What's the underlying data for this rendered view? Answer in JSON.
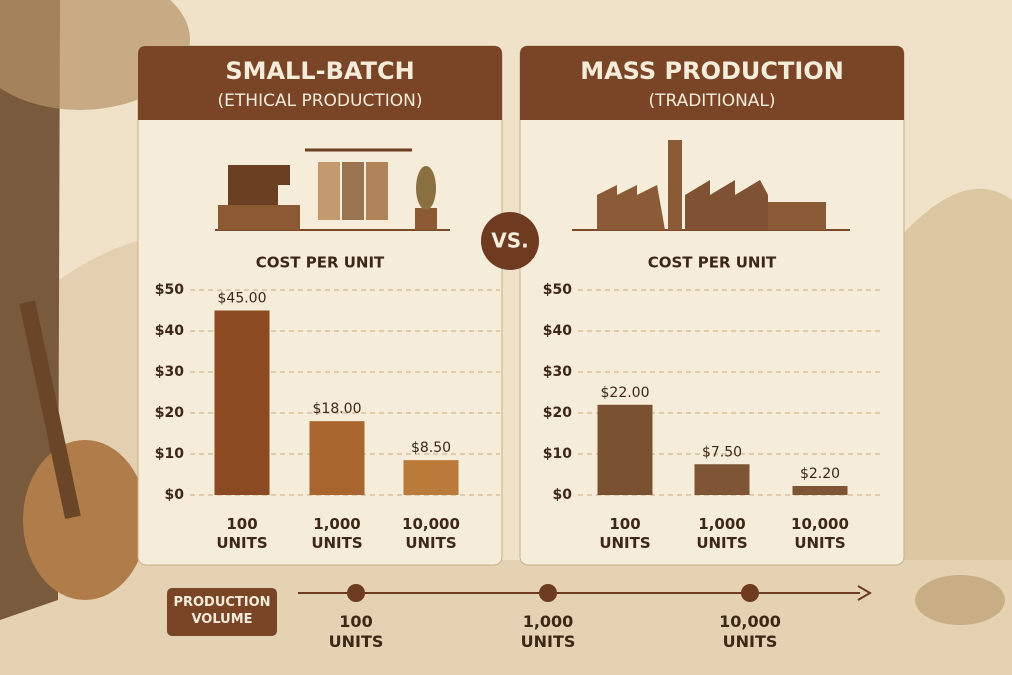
{
  "chart_data": [
    {
      "type": "bar",
      "title": "SMALL-BATCH",
      "subtitle": "(ETHICAL PRODUCTION)",
      "y_label": "COST PER UNIT",
      "categories": [
        "100 UNITS",
        "1,000 UNITS",
        "10,000 UNITS"
      ],
      "values": [
        45,
        18,
        8.5
      ],
      "value_labels": [
        "$45.00",
        "$18.00",
        "$8.50"
      ],
      "colors": [
        "#8b4a22",
        "#a8662e",
        "#b97a3a"
      ],
      "ylim": [
        0,
        50
      ],
      "yticks": [
        {
          "value": 0,
          "label": "$0"
        },
        {
          "value": 10,
          "label": "$10"
        },
        {
          "value": 20,
          "label": "$20"
        },
        {
          "value": 30,
          "label": "$30"
        },
        {
          "value": 40,
          "label": "$40"
        },
        {
          "value": 50,
          "label": "$50"
        }
      ],
      "grid": true
    },
    {
      "type": "bar",
      "title": "MASS PRODUCTION",
      "subtitle": "(TRADITIONAL)",
      "y_label": "COST PER UNIT",
      "categories": [
        "100 UNITS",
        "1,000 UNITS",
        "10,000 UNITS"
      ],
      "values": [
        22,
        7.5,
        2.2
      ],
      "value_labels": [
        "$22.00",
        "$7.50",
        "$2.20"
      ],
      "colors": [
        "#7a5232",
        "#7e5535",
        "#7e5535"
      ],
      "ylim": [
        0,
        50
      ],
      "yticks": [
        {
          "value": 0,
          "label": "$0"
        },
        {
          "value": 10,
          "label": "$10"
        },
        {
          "value": 20,
          "label": "$20"
        },
        {
          "value": 30,
          "label": "$30"
        },
        {
          "value": 40,
          "label": "$40"
        },
        {
          "value": 50,
          "label": "$50"
        }
      ],
      "grid": true
    }
  ],
  "vs": "VS.",
  "production_volume": {
    "label": "PRODUCTION VOLUME",
    "points": [
      "100 UNITS",
      "1,000 UNITS",
      "10,000 UNITS"
    ]
  }
}
